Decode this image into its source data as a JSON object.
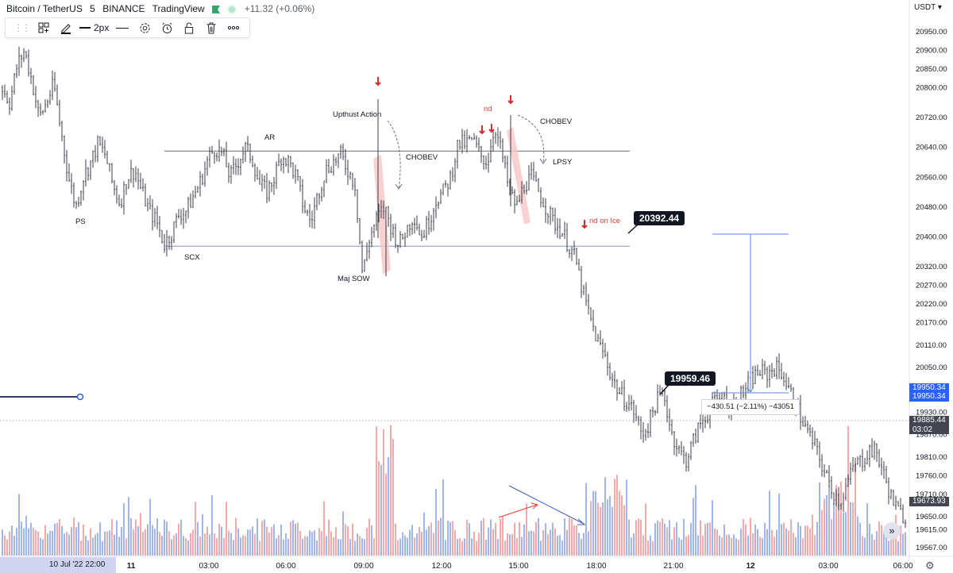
{
  "header": {
    "symbol": "Bitcoin / TetherUS",
    "interval": "5",
    "exchange": "BINANCE",
    "source": "TradingView",
    "change": "+11.32 (+0.06%)"
  },
  "toolbar": {
    "items": [
      "drag-handle-icon",
      "object-tree-icon",
      "pencil-icon",
      "line-width",
      "line-style-icon",
      "settings-icon",
      "alert-icon",
      "unlock-icon",
      "delete-icon",
      "more-icon"
    ],
    "line_width_label": "2px"
  },
  "currency_label": "USDT",
  "colors": {
    "up": "#ef9a9a",
    "down": "#8fa8e6",
    "candle": "#3c3f4a",
    "range_line": "#6b6f7a",
    "blue_line": "#3b6fd8",
    "annotation_red": "#e53935",
    "highlight": "#f8c5c5"
  },
  "chart_data": {
    "type": "candlestick",
    "ylim": [
      19545,
      21000
    ],
    "y_ticks": [
      20950,
      20900,
      20850,
      20800,
      20720,
      20640,
      20560,
      20480,
      20400,
      20320,
      20270,
      20220,
      20170,
      20110,
      20050,
      19990,
      19930,
      19870,
      19810,
      19760,
      19710,
      19650,
      19615,
      19567
    ],
    "x_ticks": [
      "11",
      "03:00",
      "06:00",
      "09:00",
      "12:00",
      "15:00",
      "18:00",
      "21:00",
      "12",
      "03:00",
      "06:00"
    ],
    "x_cursor_label": "10 Jul '22   22:00",
    "range_high": 20630,
    "range_low": 20375,
    "trend_path": [
      [
        20800,
        20760,
        20860,
        20900,
        20820,
        20720,
        20760,
        20810,
        20680
      ],
      [
        20560,
        20480,
        20560,
        20600,
        20650,
        20620,
        20540,
        20490,
        20560
      ],
      [
        20580,
        20520,
        20470,
        20440,
        20380,
        20410,
        20460,
        20470,
        20510
      ],
      [
        20550,
        20610,
        20640,
        20620,
        20560,
        20600,
        20640,
        20610,
        20540
      ],
      [
        20520,
        20560,
        20620,
        20600,
        20560,
        20480,
        20440,
        20520,
        20580
      ],
      [
        20600,
        20620,
        20580,
        20540,
        20300,
        20400,
        20450,
        20480,
        20420
      ],
      [
        20380,
        20420,
        20460,
        20400,
        20440,
        20500,
        20520,
        20560,
        20650
      ],
      [
        20650,
        20660,
        20620,
        20600,
        20700,
        20620,
        20520,
        20480,
        20540
      ],
      [
        20560,
        20520,
        20480,
        20440,
        20420,
        20380,
        20340,
        20250,
        20180
      ],
      [
        20120,
        20080,
        20020,
        19980,
        19960,
        19930,
        19870,
        19900,
        19960
      ],
      [
        19980,
        19880,
        19830,
        19800,
        19850,
        19900,
        19930,
        19960,
        19970
      ],
      [
        19940,
        19960,
        19990,
        20020,
        20040,
        20030,
        20050,
        20040,
        19990
      ],
      [
        19950,
        19900,
        19860,
        19820,
        19760,
        19720,
        19690,
        19740,
        19790
      ],
      [
        19800,
        19830,
        19820,
        19760,
        19700,
        19660,
        19650
      ]
    ],
    "price_labels": [
      {
        "text": "19950.34",
        "color": "#2962ff"
      },
      {
        "text": "19950.34",
        "color": "#2962ff"
      },
      {
        "text": "19885.44",
        "color": "#434651"
      },
      {
        "text": "03:02",
        "color": "#434651"
      },
      {
        "text": "19673.93",
        "color": "#434651"
      }
    ],
    "annotations": {
      "ps": "PS",
      "scx": "SCX",
      "ar": "AR",
      "upthrust": "Upthust Action",
      "chobev1": "CHOBEV",
      "maj_sow": "Maj SOW",
      "nd1": "nd",
      "chobev2": "CHOBEV",
      "lpsy": "LPSY",
      "nd_on_ice": "nd on Ice"
    },
    "callout_1": "20392.44",
    "callout_2": "19959.46",
    "measure_label": "−430.51 (−2.11%) −43051"
  },
  "scroll_glyph": "»",
  "settings_glyph": "⚙"
}
